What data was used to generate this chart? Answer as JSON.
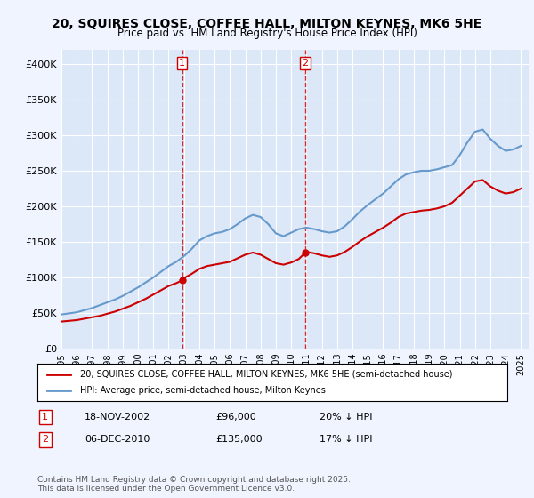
{
  "title": "20, SQUIRES CLOSE, COFFEE HALL, MILTON KEYNES, MK6 5HE",
  "subtitle": "Price paid vs. HM Land Registry's House Price Index (HPI)",
  "background_color": "#f0f4ff",
  "plot_bg_color": "#dce8f8",
  "legend_entry1": "20, SQUIRES CLOSE, COFFEE HALL, MILTON KEYNES, MK6 5HE (semi-detached house)",
  "legend_entry2": "HPI: Average price, semi-detached house, Milton Keynes",
  "footer": "Contains HM Land Registry data © Crown copyright and database right 2025.\nThis data is licensed under the Open Government Licence v3.0.",
  "annotation1_label": "1",
  "annotation1_date": "18-NOV-2002",
  "annotation1_price": "£96,000",
  "annotation1_hpi": "20% ↓ HPI",
  "annotation2_label": "2",
  "annotation2_date": "06-DEC-2010",
  "annotation2_price": "£135,000",
  "annotation2_hpi": "17% ↓ HPI",
  "sale1_x": 2002.88,
  "sale1_y": 96000,
  "sale2_x": 2010.92,
  "sale2_y": 135000,
  "vline1_x": 2002.88,
  "vline2_x": 2010.92,
  "xmin": 1995,
  "xmax": 2025.5,
  "ymin": 0,
  "ymax": 420000,
  "yticks": [
    0,
    50000,
    100000,
    150000,
    200000,
    250000,
    300000,
    350000,
    400000
  ],
  "ytick_labels": [
    "£0",
    "£50K",
    "£100K",
    "£150K",
    "£200K",
    "£250K",
    "£300K",
    "£350K",
    "£400K"
  ],
  "red_line_color": "#cc0000",
  "blue_line_color": "#6699cc",
  "vline_color": "#cc0000",
  "hpi_x": [
    1995.0,
    1995.5,
    1996.0,
    1996.5,
    1997.0,
    1997.5,
    1998.0,
    1998.5,
    1999.0,
    1999.5,
    2000.0,
    2000.5,
    2001.0,
    2001.5,
    2002.0,
    2002.5,
    2003.0,
    2003.5,
    2004.0,
    2004.5,
    2005.0,
    2005.5,
    2006.0,
    2006.5,
    2007.0,
    2007.5,
    2008.0,
    2008.5,
    2009.0,
    2009.5,
    2010.0,
    2010.5,
    2011.0,
    2011.5,
    2012.0,
    2012.5,
    2013.0,
    2013.5,
    2014.0,
    2014.5,
    2015.0,
    2015.5,
    2016.0,
    2016.5,
    2017.0,
    2017.5,
    2018.0,
    2018.5,
    2019.0,
    2019.5,
    2020.0,
    2020.5,
    2021.0,
    2021.5,
    2022.0,
    2022.5,
    2023.0,
    2023.5,
    2024.0,
    2024.5,
    2025.0
  ],
  "hpi_y": [
    48000,
    49500,
    51000,
    54000,
    57000,
    61000,
    65000,
    69000,
    74000,
    80000,
    86000,
    93000,
    100000,
    108000,
    116000,
    122000,
    130000,
    140000,
    152000,
    158000,
    162000,
    164000,
    168000,
    175000,
    183000,
    188000,
    185000,
    175000,
    162000,
    158000,
    163000,
    168000,
    170000,
    168000,
    165000,
    163000,
    165000,
    172000,
    182000,
    193000,
    202000,
    210000,
    218000,
    228000,
    238000,
    245000,
    248000,
    250000,
    250000,
    252000,
    255000,
    258000,
    272000,
    290000,
    305000,
    308000,
    295000,
    285000,
    278000,
    280000,
    285000
  ],
  "price_x": [
    1995.0,
    1995.5,
    1996.0,
    1996.5,
    1997.0,
    1997.5,
    1998.0,
    1998.5,
    1999.0,
    1999.5,
    2000.0,
    2000.5,
    2001.0,
    2001.5,
    2002.0,
    2002.5,
    2002.88,
    2003.0,
    2003.5,
    2004.0,
    2004.5,
    2005.0,
    2005.5,
    2006.0,
    2006.5,
    2007.0,
    2007.5,
    2008.0,
    2008.5,
    2009.0,
    2009.5,
    2010.0,
    2010.5,
    2010.92,
    2011.0,
    2011.5,
    2012.0,
    2012.5,
    2013.0,
    2013.5,
    2014.0,
    2014.5,
    2015.0,
    2015.5,
    2016.0,
    2016.5,
    2017.0,
    2017.5,
    2018.0,
    2018.5,
    2019.0,
    2019.5,
    2020.0,
    2020.5,
    2021.0,
    2021.5,
    2022.0,
    2022.5,
    2023.0,
    2023.5,
    2024.0,
    2024.5,
    2025.0
  ],
  "price_y": [
    38000,
    39000,
    40000,
    42000,
    44000,
    46000,
    49000,
    52000,
    56000,
    60000,
    65000,
    70000,
    76000,
    82000,
    88000,
    92000,
    96000,
    99000,
    105000,
    112000,
    116000,
    118000,
    120000,
    122000,
    127000,
    132000,
    135000,
    132000,
    126000,
    120000,
    118000,
    121000,
    126000,
    135000,
    136000,
    134000,
    131000,
    129000,
    131000,
    136000,
    143000,
    151000,
    158000,
    164000,
    170000,
    177000,
    185000,
    190000,
    192000,
    194000,
    195000,
    197000,
    200000,
    205000,
    215000,
    225000,
    235000,
    237000,
    228000,
    222000,
    218000,
    220000,
    225000
  ]
}
